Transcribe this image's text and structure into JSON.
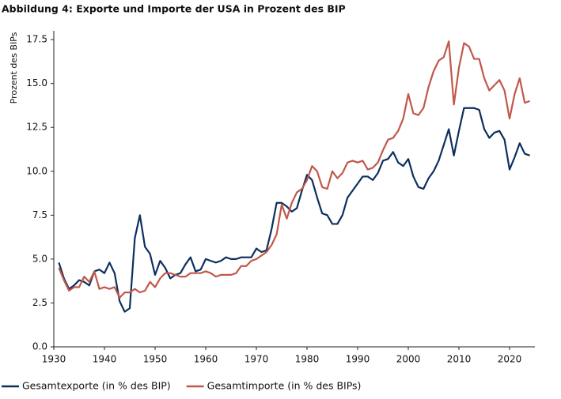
{
  "chart_data": {
    "type": "line",
    "title": "Abbildung 4: Exporte und Importe der USA in Prozent des BIP",
    "y_label": "Prozent des BIPs",
    "x": [
      1931,
      1932,
      1933,
      1934,
      1935,
      1936,
      1937,
      1938,
      1939,
      1940,
      1941,
      1942,
      1943,
      1944,
      1945,
      1946,
      1947,
      1948,
      1949,
      1950,
      1951,
      1952,
      1953,
      1954,
      1955,
      1956,
      1957,
      1958,
      1959,
      1960,
      1961,
      1962,
      1963,
      1964,
      1965,
      1966,
      1967,
      1968,
      1969,
      1970,
      1971,
      1972,
      1973,
      1974,
      1975,
      1976,
      1977,
      1978,
      1979,
      1980,
      1981,
      1982,
      1983,
      1984,
      1985,
      1986,
      1987,
      1988,
      1989,
      1990,
      1991,
      1992,
      1993,
      1994,
      1995,
      1996,
      1997,
      1998,
      1999,
      2000,
      2001,
      2002,
      2003,
      2004,
      2005,
      2006,
      2007,
      2008,
      2009,
      2010,
      2011,
      2012,
      2013,
      2014,
      2015,
      2016,
      2017,
      2018,
      2019,
      2020,
      2021,
      2022,
      2023,
      2024
    ],
    "series": [
      {
        "name": "Gesamtexporte (in % des BIP)",
        "color": "#0d2f5e",
        "values": [
          4.8,
          3.9,
          3.3,
          3.5,
          3.8,
          3.7,
          3.5,
          4.3,
          4.4,
          4.2,
          4.8,
          4.2,
          2.6,
          2.0,
          2.2,
          6.2,
          7.5,
          5.7,
          5.3,
          4.1,
          4.9,
          4.5,
          3.9,
          4.1,
          4.2,
          4.7,
          5.1,
          4.3,
          4.4,
          5.0,
          4.9,
          4.8,
          4.9,
          5.1,
          5.0,
          5.0,
          5.1,
          5.1,
          5.1,
          5.6,
          5.4,
          5.5,
          6.7,
          8.2,
          8.2,
          8.0,
          7.7,
          7.9,
          8.9,
          9.8,
          9.5,
          8.5,
          7.6,
          7.5,
          7.0,
          7.0,
          7.5,
          8.5,
          8.9,
          9.3,
          9.7,
          9.7,
          9.5,
          9.9,
          10.6,
          10.7,
          11.1,
          10.5,
          10.3,
          10.7,
          9.7,
          9.1,
          9.0,
          9.6,
          10.0,
          10.6,
          11.5,
          12.4,
          10.9,
          12.3,
          13.6,
          13.6,
          13.6,
          13.5,
          12.4,
          11.9,
          12.2,
          12.3,
          11.8,
          10.1,
          10.8,
          11.6,
          11.0,
          10.9
        ]
      },
      {
        "name": "Gesamtimporte (in % des BIPs)",
        "color": "#c0584b",
        "values": [
          4.5,
          3.8,
          3.2,
          3.4,
          3.4,
          4.0,
          3.7,
          4.3,
          3.3,
          3.4,
          3.3,
          3.4,
          2.8,
          3.1,
          3.1,
          3.3,
          3.1,
          3.2,
          3.7,
          3.4,
          3.9,
          4.2,
          4.2,
          4.1,
          4.0,
          4.0,
          4.2,
          4.2,
          4.2,
          4.3,
          4.2,
          4.0,
          4.1,
          4.1,
          4.1,
          4.2,
          4.6,
          4.6,
          4.9,
          5.0,
          5.2,
          5.4,
          5.8,
          6.4,
          8.1,
          7.3,
          8.2,
          8.8,
          9.0,
          9.5,
          10.3,
          10.0,
          9.1,
          9.0,
          10.0,
          9.6,
          9.9,
          10.5,
          10.6,
          10.5,
          10.6,
          10.1,
          10.2,
          10.5,
          11.2,
          11.8,
          11.9,
          12.3,
          13.0,
          14.4,
          13.3,
          13.2,
          13.6,
          14.8,
          15.7,
          16.3,
          16.5,
          17.4,
          13.8,
          15.9,
          17.3,
          17.1,
          16.4,
          16.4,
          15.3,
          14.6,
          14.9,
          15.2,
          14.6,
          13.0,
          14.4,
          15.3,
          13.9,
          14.0
        ]
      }
    ],
    "xlim": [
      1930,
      2025
    ],
    "xticks": [
      1930,
      1940,
      1950,
      1960,
      1970,
      1980,
      1990,
      2000,
      2010,
      2020
    ],
    "ylim": [
      0,
      18
    ],
    "yticks": [
      {
        "value": 0,
        "label": "0.0"
      },
      2.5,
      {
        "value": 5,
        "label": "5.0"
      },
      7.5,
      {
        "value": 10,
        "label": "10.0"
      },
      12.5,
      {
        "value": 15,
        "label": "15.0"
      },
      17.5
    ],
    "grid": false,
    "legend": "bottom"
  }
}
